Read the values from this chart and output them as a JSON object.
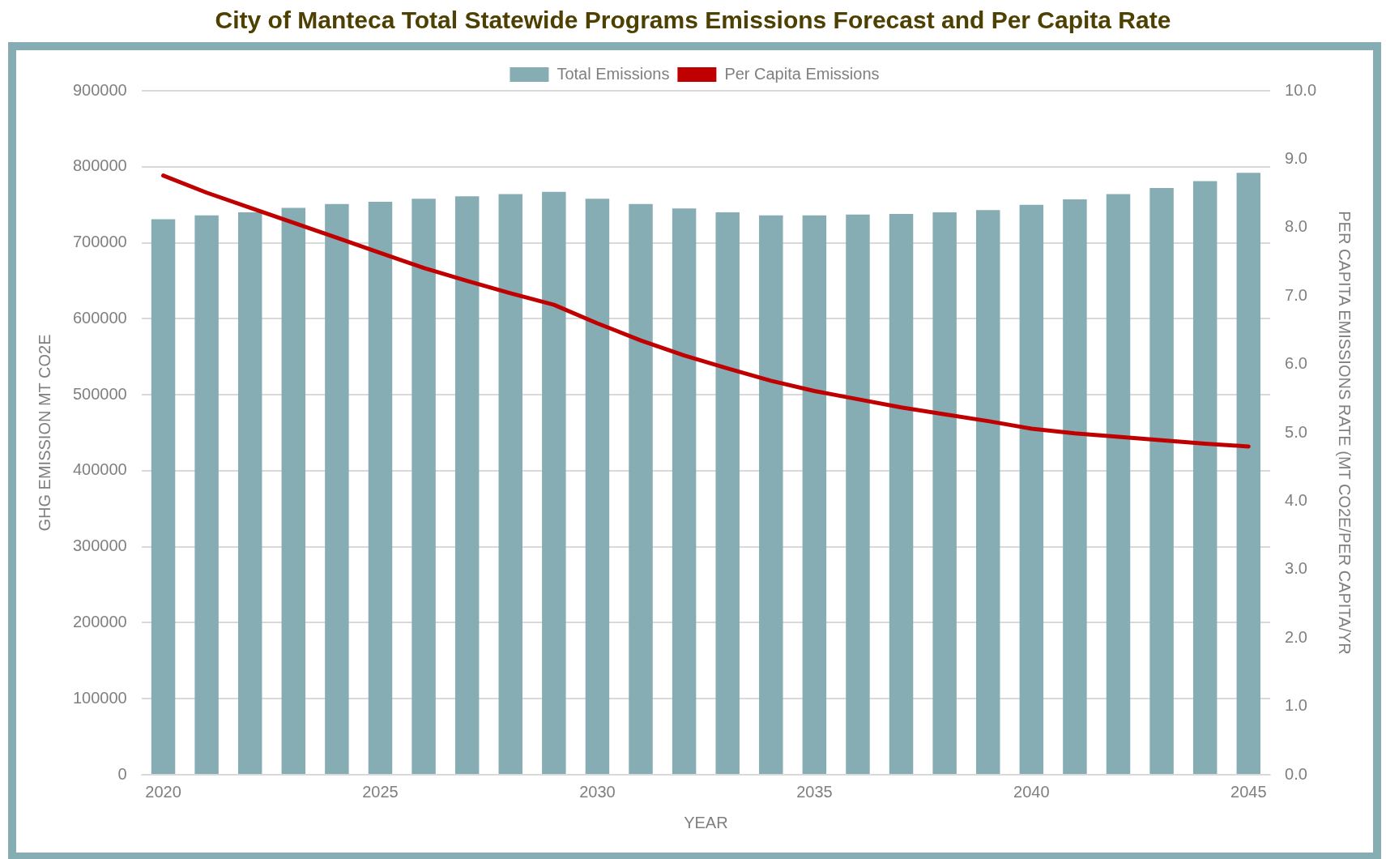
{
  "chart_data": {
    "type": "bar",
    "title": "City of Manteca Total Statewide Programs Emissions Forecast and Per Capita Rate",
    "xlabel": "YEAR",
    "ylabel": "GHG EMISSION MT CO2E",
    "y2label": "PER CAPITA EMISSIONS RATE (MT CO2E/PER CAPITA/YR",
    "categories": [
      "2020",
      null,
      null,
      null,
      null,
      "2025",
      null,
      null,
      null,
      null,
      "2030",
      null,
      null,
      null,
      null,
      "2035",
      null,
      null,
      null,
      null,
      "2040",
      null,
      null,
      null,
      null,
      "2045"
    ],
    "series": [
      {
        "name": "Total Emissions",
        "color": "#87adb4",
        "values": [
          731000,
          736000,
          740000,
          746000,
          751000,
          754000,
          758000,
          761000,
          764000,
          767000,
          758000,
          751000,
          745000,
          740000,
          736000,
          736000,
          737000,
          738000,
          740000,
          743000,
          750000,
          757000,
          764000,
          772000,
          781000,
          792000
        ]
      },
      {
        "name": "Per Capita Emissions",
        "type": "line",
        "axis": "y2",
        "color": "#c00000",
        "values": [
          8.76,
          8.51,
          8.29,
          8.07,
          7.85,
          7.63,
          7.41,
          7.22,
          7.04,
          6.87,
          6.6,
          6.35,
          6.13,
          5.94,
          5.76,
          5.61,
          5.49,
          5.37,
          5.27,
          5.17,
          5.06,
          4.99,
          4.94,
          4.89,
          4.84,
          4.8
        ]
      }
    ],
    "ylim": [
      0,
      900000
    ],
    "yticks": [
      0,
      100000,
      200000,
      300000,
      400000,
      500000,
      600000,
      700000,
      800000,
      900000
    ],
    "y2lim": [
      0,
      10
    ],
    "y2ticks": [
      {
        "value": 0,
        "label": "0.0"
      },
      {
        "value": 1,
        "label": "1.0"
      },
      {
        "value": 2,
        "label": "2.0"
      },
      {
        "value": 3,
        "label": "3.0"
      },
      {
        "value": 4,
        "label": "4.0"
      },
      {
        "value": 5,
        "label": "5.0"
      },
      {
        "value": 6,
        "label": "6.0"
      },
      {
        "value": 7,
        "label": "7.0"
      },
      {
        "value": 8,
        "label": "8.0"
      },
      {
        "value": 9,
        "label": "9.0"
      },
      {
        "value": 10,
        "label": "10.0"
      }
    ],
    "grid": "y",
    "legend": "top",
    "marker": "none",
    "line_style": "solid"
  }
}
